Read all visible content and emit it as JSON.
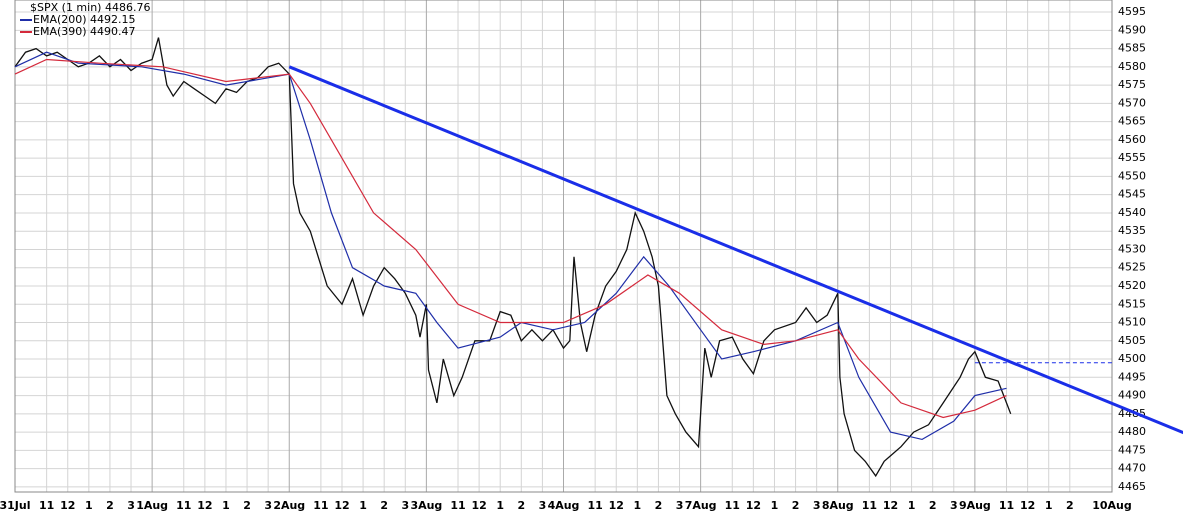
{
  "chart_data": {
    "type": "line",
    "xlim": [
      0,
      52
    ],
    "ylim": [
      4463.6,
      4598.3
    ],
    "grid": true,
    "xticks": [
      {
        "value": 0,
        "label": "31Jul"
      },
      {
        "value": 1.5,
        "label": "11"
      },
      {
        "value": 2.5,
        "label": "12"
      },
      {
        "value": 3.5,
        "label": "1"
      },
      {
        "value": 4.5,
        "label": "2"
      },
      {
        "value": 5.5,
        "label": "3"
      },
      {
        "value": 6.5,
        "label": "1Aug"
      },
      {
        "value": 8,
        "label": "11"
      },
      {
        "value": 9,
        "label": "12"
      },
      {
        "value": 10,
        "label": "1"
      },
      {
        "value": 11,
        "label": "2"
      },
      {
        "value": 12,
        "label": "3"
      },
      {
        "value": 13,
        "label": "2Aug"
      },
      {
        "value": 14.5,
        "label": "11"
      },
      {
        "value": 15.5,
        "label": "12"
      },
      {
        "value": 16.5,
        "label": "1"
      },
      {
        "value": 17.5,
        "label": "2"
      },
      {
        "value": 18.5,
        "label": "3"
      },
      {
        "value": 19.5,
        "label": "3Aug"
      },
      {
        "value": 21,
        "label": "11"
      },
      {
        "value": 22,
        "label": "12"
      },
      {
        "value": 23,
        "label": "1"
      },
      {
        "value": 24,
        "label": "2"
      },
      {
        "value": 25,
        "label": "3"
      },
      {
        "value": 26,
        "label": "4Aug"
      },
      {
        "value": 27.5,
        "label": "11"
      },
      {
        "value": 28.5,
        "label": "12"
      },
      {
        "value": 29.5,
        "label": "1"
      },
      {
        "value": 30.5,
        "label": "2"
      },
      {
        "value": 31.5,
        "label": "3"
      },
      {
        "value": 32.5,
        "label": "7Aug"
      },
      {
        "value": 34,
        "label": "11"
      },
      {
        "value": 35,
        "label": "12"
      },
      {
        "value": 36,
        "label": "1"
      },
      {
        "value": 37,
        "label": "2"
      },
      {
        "value": 38,
        "label": "3"
      },
      {
        "value": 39,
        "label": "8Aug"
      },
      {
        "value": 40.5,
        "label": "11"
      },
      {
        "value": 41.5,
        "label": "12"
      },
      {
        "value": 42.5,
        "label": "1"
      },
      {
        "value": 43.5,
        "label": "2"
      },
      {
        "value": 44.5,
        "label": "3"
      },
      {
        "value": 45.5,
        "label": "9Aug"
      },
      {
        "value": 47,
        "label": "11"
      },
      {
        "value": 48,
        "label": "12"
      },
      {
        "value": 49,
        "label": "1"
      },
      {
        "value": 50,
        "label": "2"
      },
      {
        "value": 52,
        "label": "10Aug"
      }
    ],
    "yticks": [
      4465,
      4470,
      4475,
      4480,
      4485,
      4490,
      4495,
      4500,
      4505,
      4510,
      4515,
      4520,
      4525,
      4530,
      4535,
      4540,
      4545,
      4550,
      4555,
      4560,
      4565,
      4570,
      4575,
      4580,
      4585,
      4590,
      4595
    ],
    "series": [
      {
        "name": "$SPX (1 min) 4486.76",
        "color": "#111111",
        "x": [
          0,
          0.5,
          1,
          1.5,
          2,
          2.5,
          3,
          3.5,
          4,
          4.5,
          5,
          5.5,
          6,
          6.5,
          6.8,
          7.2,
          7.5,
          8,
          8.5,
          9,
          9.5,
          10,
          10.5,
          11,
          11.5,
          12,
          12.5,
          13,
          13.2,
          13.5,
          14,
          14.8,
          15.5,
          16,
          16.5,
          17,
          17.5,
          18,
          18.5,
          19,
          19.2,
          19.5,
          19.6,
          20,
          20.3,
          20.8,
          21.2,
          21.8,
          22.5,
          23,
          23.5,
          24,
          24.5,
          25,
          25.5,
          26,
          26.3,
          26.5,
          26.8,
          27.1,
          27.5,
          28,
          28.5,
          29,
          29.4,
          29.8,
          30.2,
          30.5,
          30.7,
          30.9,
          31.3,
          31.8,
          32.4,
          32.7,
          33,
          33.4,
          34,
          34.5,
          35,
          35.5,
          36,
          37,
          37.5,
          38,
          38.5,
          39,
          39.1,
          39.3,
          39.8,
          40.3,
          40.8,
          41.2,
          42,
          42.6,
          43.3,
          44,
          44.8,
          45.2,
          45.5,
          46,
          46.6,
          47,
          47.2
        ],
        "values": [
          4580,
          4584,
          4585,
          4583,
          4584,
          4582,
          4580,
          4581,
          4583,
          4580,
          4582,
          4579,
          4581,
          4582,
          4588,
          4575,
          4572,
          4576,
          4574,
          4572,
          4570,
          4574,
          4573,
          4576,
          4577,
          4580,
          4581,
          4578,
          4548,
          4540,
          4535,
          4520,
          4515,
          4522,
          4512,
          4520,
          4525,
          4522,
          4518,
          4512,
          4506,
          4515,
          4497,
          4488,
          4500,
          4490,
          4495,
          4505,
          4505,
          4513,
          4512,
          4505,
          4508,
          4505,
          4508,
          4503,
          4505,
          4528,
          4510,
          4502,
          4512,
          4520,
          4524,
          4530,
          4540,
          4535,
          4528,
          4520,
          4505,
          4490,
          4485,
          4480,
          4476,
          4503,
          4495,
          4505,
          4506,
          4500,
          4496,
          4505,
          4508,
          4510,
          4514,
          4510,
          4512,
          4518,
          4495,
          4485,
          4475,
          4472,
          4468,
          4472,
          4476,
          4480,
          4482,
          4488,
          4495,
          4500,
          4502,
          4495,
          4494,
          4488,
          4485
        ]
      },
      {
        "name": "EMA(200) 4492.15",
        "color": "#1f2ea8",
        "x": [
          0,
          1.5,
          3,
          6,
          8,
          10,
          12,
          13,
          14,
          15,
          16,
          17.5,
          19,
          20,
          21,
          23,
          24,
          25.5,
          27,
          28.5,
          29.8,
          31,
          32.5,
          33.5,
          35,
          37,
          39,
          40,
          41.5,
          43,
          44.5,
          45.5,
          47
        ],
        "values": [
          4580,
          4584,
          4581,
          4580,
          4578,
          4575,
          4577,
          4578,
          4560,
          4540,
          4525,
          4520,
          4518,
          4510,
          4503,
          4506,
          4510,
          4508,
          4510,
          4518,
          4528,
          4520,
          4508,
          4500,
          4502,
          4505,
          4510,
          4495,
          4480,
          4478,
          4483,
          4490,
          4492
        ]
      },
      {
        "name": "EMA(390) 4490.47",
        "color": "#d42a3c",
        "x": [
          0,
          1.5,
          4,
          7,
          10,
          13,
          14,
          15.5,
          17,
          19,
          21,
          23,
          26,
          28,
          30,
          31.5,
          33.5,
          35.5,
          37,
          39,
          40,
          42,
          44,
          45.5,
          47
        ],
        "values": [
          4578,
          4582,
          4581,
          4580,
          4576,
          4578,
          4570,
          4555,
          4540,
          4530,
          4515,
          4510,
          4510,
          4515,
          4523,
          4518,
          4508,
          4504,
          4505,
          4508,
          4500,
          4488,
          4484,
          4486,
          4490
        ]
      }
    ],
    "annotations": [
      {
        "x": [
          13,
          55.4
        ],
        "values": [
          4580,
          4479.8
        ],
        "color": "#1a2ee8",
        "style": "solid"
      },
      {
        "x": [
          45.5,
          52
        ],
        "values": [
          4499,
          4499
        ],
        "color": "#1a2ee8",
        "style": "dashed"
      }
    ]
  }
}
